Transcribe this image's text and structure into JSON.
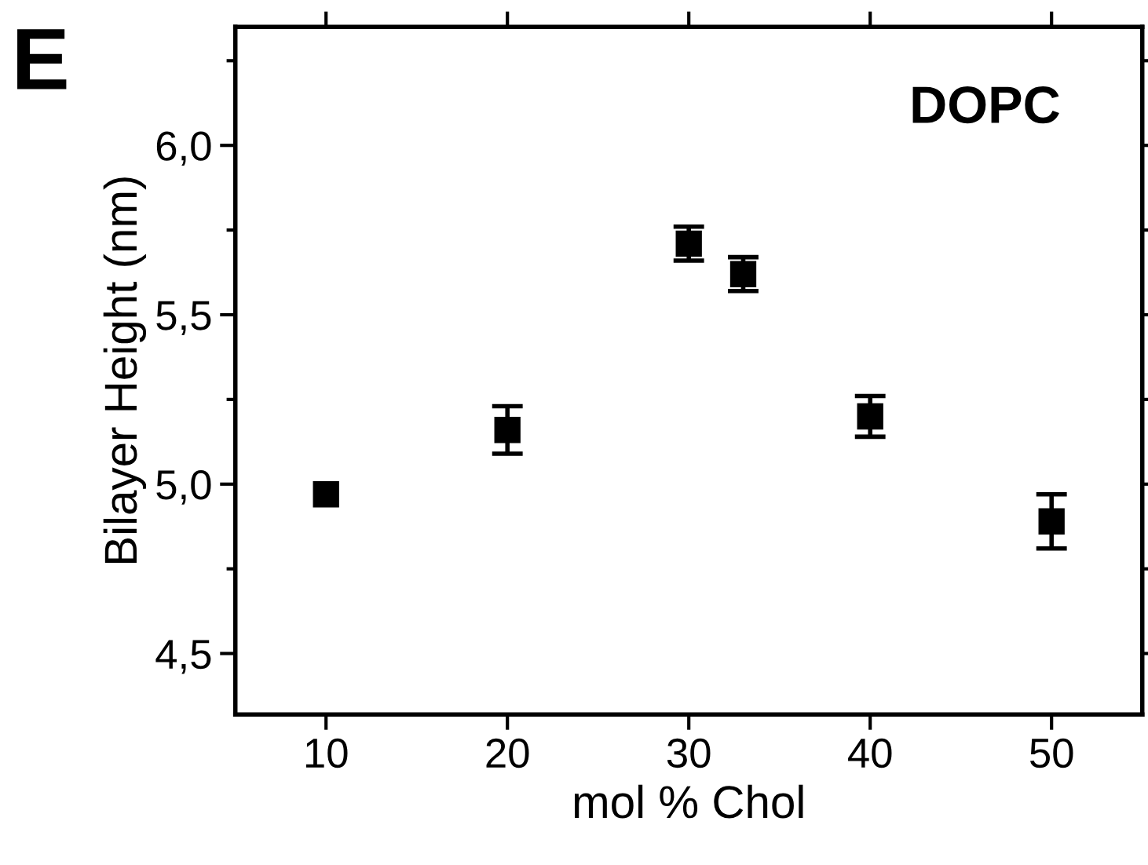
{
  "chart_data": {
    "type": "scatter",
    "xlabel": "mol % Chol",
    "ylabel": "Bilayer Height (nm)",
    "annotations": [
      "E",
      "DOPC"
    ],
    "x": [
      10,
      20,
      30,
      33,
      40,
      50
    ],
    "series": [
      {
        "color": "#000000",
        "values": [
          4.97,
          5.16,
          5.71,
          5.62,
          5.2,
          4.89
        ],
        "errors": [
          null,
          0.07,
          0.05,
          0.05,
          0.06,
          0.08
        ]
      }
    ],
    "marker": "square",
    "xlim": [
      5,
      55
    ],
    "xticks": [
      10,
      20,
      30,
      40,
      50
    ],
    "ylim": [
      4.32,
      6.35
    ],
    "yticks": [
      {
        "value": 4.5,
        "label": "4,5"
      },
      {
        "value": 5.0,
        "label": "5,0"
      },
      {
        "value": 5.5,
        "label": "5,5"
      },
      {
        "value": 6.0,
        "label": "6,0"
      }
    ],
    "grid": false,
    "legend": false
  }
}
